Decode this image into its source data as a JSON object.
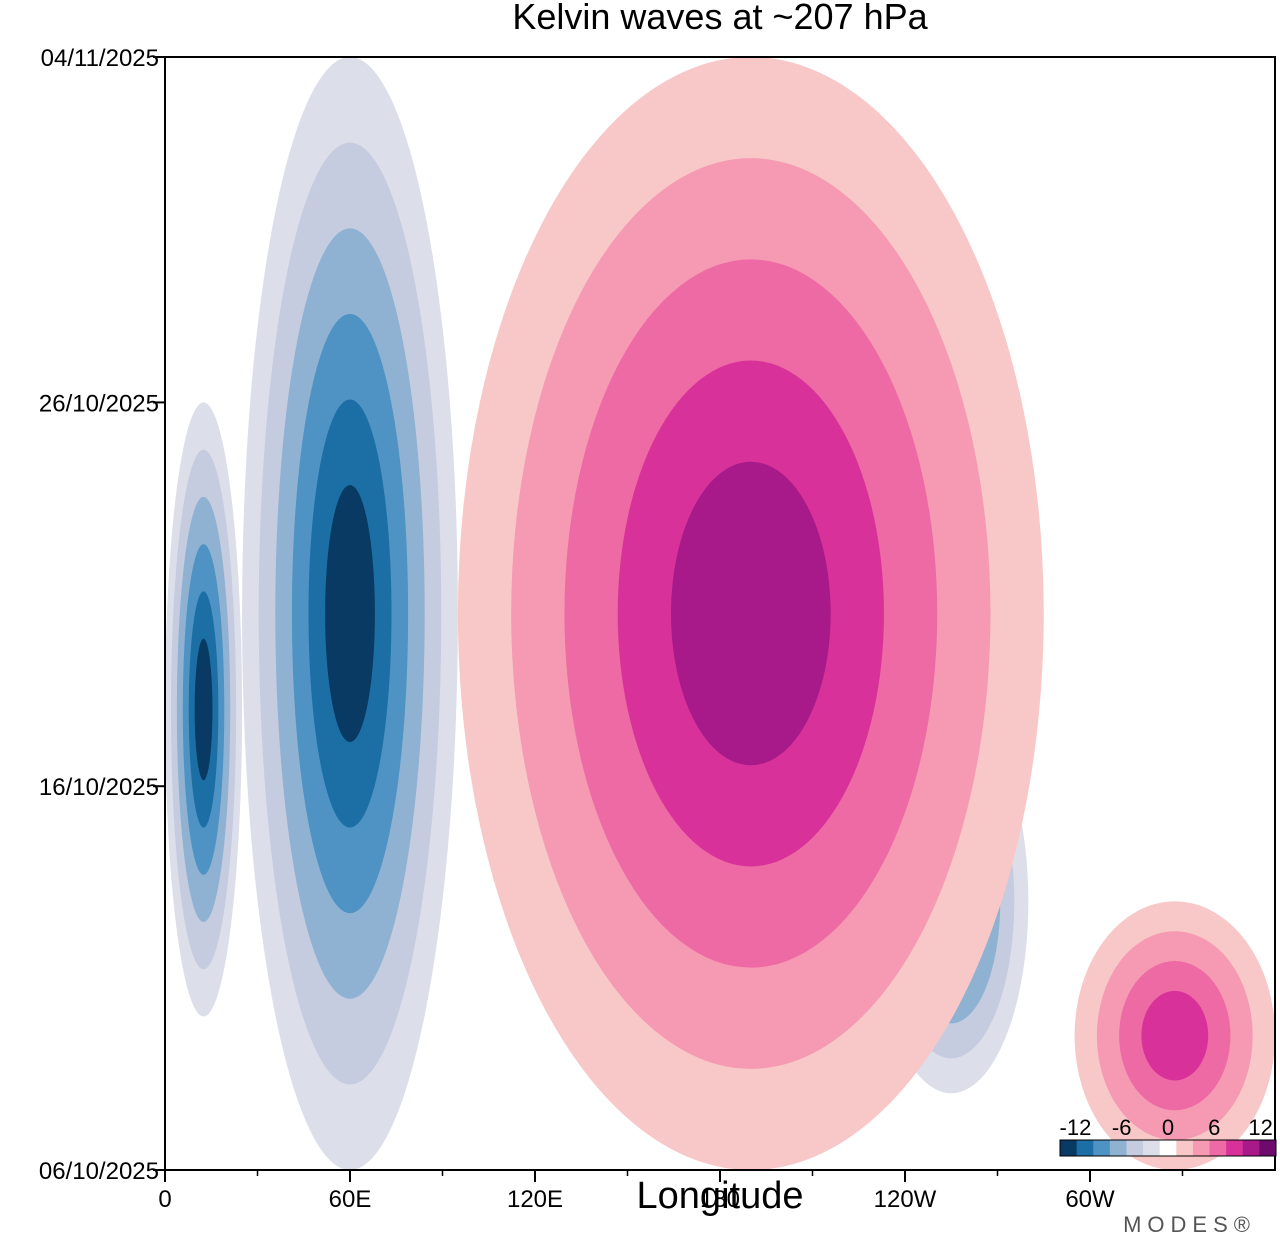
{
  "chart_data": {
    "type": "heatmap",
    "title": "Kelvin waves at ~207 hPa",
    "xlabel": "Longitude",
    "ylabel": "",
    "x_ticks": [
      "0",
      "60E",
      "120E",
      "180",
      "120W",
      "60W"
    ],
    "x_tick_values": [
      0,
      60,
      120,
      180,
      240,
      300
    ],
    "xlim": [
      0,
      360
    ],
    "y_ticks": [
      "06/10/2025",
      "16/10/2025",
      "26/10/2025",
      "04/11/2025"
    ],
    "y_tick_values": [
      "2025-10-06",
      "2025-10-16",
      "2025-10-26",
      "2025-11-04"
    ],
    "ylim": [
      "2025-10-06",
      "2025-11-04"
    ],
    "grid": false,
    "colorbar": {
      "tick_labels": [
        "-12",
        "-6",
        "0",
        "6",
        "12"
      ],
      "tick_values": [
        -12,
        -6,
        0,
        6,
        12
      ],
      "levels": [
        -14,
        -12,
        -10,
        -8,
        -6,
        -4,
        -2,
        2,
        4,
        6,
        8,
        10,
        12,
        14
      ],
      "colors": [
        "#083a63",
        "#1c6fa5",
        "#4f93c4",
        "#8fb2d3",
        "#c6cce0",
        "#dcdfea",
        "#ffffff",
        "#f8c8c8",
        "#f59ab2",
        "#ee6aa4",
        "#d8329a",
        "#a81a8a",
        "#6e0a6e"
      ]
    },
    "features": [
      {
        "sign": "negative",
        "peak": -12,
        "lon_range": [
          0,
          25
        ],
        "dates": [
          "2025-10-10",
          "2025-10-26"
        ]
      },
      {
        "sign": "negative",
        "peak": -12,
        "lon_range": [
          25,
          95
        ],
        "dates": [
          "2025-10-06",
          "2025-11-04"
        ]
      },
      {
        "sign": "negative",
        "peak": -10,
        "lon_range": [
          230,
          280
        ],
        "dates": [
          "2025-10-08",
          "2025-10-18"
        ]
      },
      {
        "sign": "positive",
        "peak": 10,
        "lon_range": [
          95,
          285
        ],
        "dates": [
          "2025-10-06",
          "2025-11-04"
        ]
      },
      {
        "sign": "positive",
        "peak": 8,
        "lon_range": [
          295,
          360
        ],
        "dates": [
          "2025-10-06",
          "2025-10-13"
        ]
      }
    ],
    "colors": {
      "negative_strong": "#1c6fa5",
      "positive_strong": "#ee6aa4"
    }
  },
  "brand": "MODES®"
}
